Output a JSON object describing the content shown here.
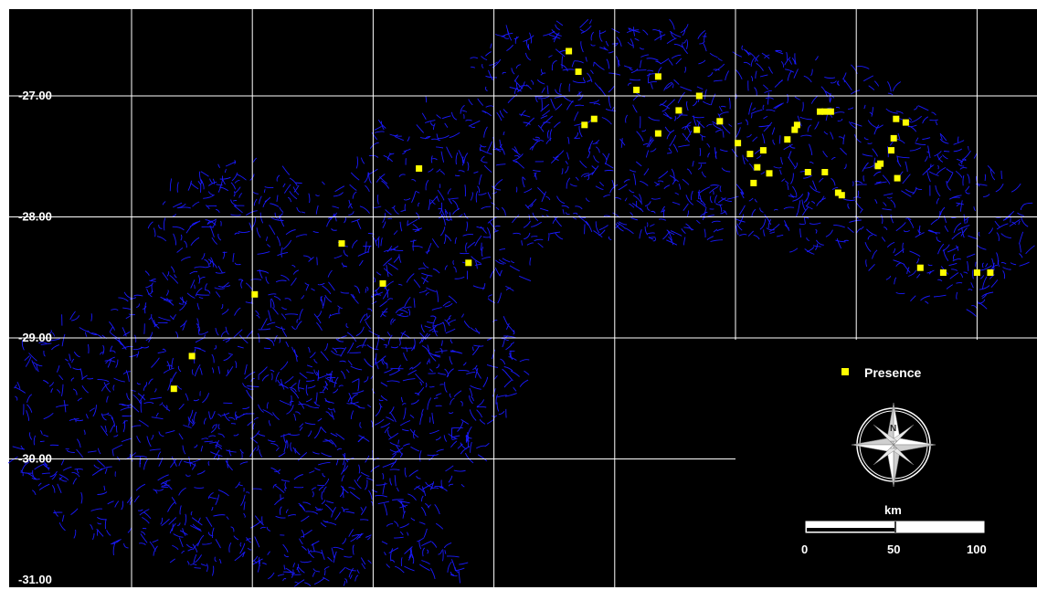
{
  "map": {
    "background_color": "#000000",
    "river_color": "#1a1aff",
    "grid_color": "#ffffff",
    "point_color": "#ffff00",
    "lon_ticks": [
      "-57.00",
      "-56.00",
      "-55.00",
      "-54.00",
      "-53.00",
      "-52.00",
      "-51.00",
      "-50.00"
    ],
    "lat_ticks": [
      "-27.00",
      "-28.00",
      "-29.00",
      "-30.00",
      "-31.00"
    ]
  },
  "legend": {
    "symbol": "yellow-square",
    "label": "Presence"
  },
  "north_arrow": {
    "icon": "compass-rose-icon",
    "letter": "N"
  },
  "scale_bar": {
    "unit": "km",
    "labels": [
      "0",
      "50",
      "100"
    ]
  },
  "presence_points": [
    [
      -53.38,
      -26.63
    ],
    [
      -53.3,
      -26.8
    ],
    [
      -52.64,
      -26.84
    ],
    [
      -52.82,
      -26.95
    ],
    [
      -52.3,
      -27.0
    ],
    [
      -52.47,
      -27.12
    ],
    [
      -53.17,
      -27.19
    ],
    [
      -53.25,
      -27.24
    ],
    [
      -52.13,
      -27.21
    ],
    [
      -52.32,
      -27.28
    ],
    [
      -52.64,
      -27.31
    ],
    [
      -51.49,
      -27.24
    ],
    [
      -51.51,
      -27.28
    ],
    [
      -51.57,
      -27.36
    ],
    [
      -51.98,
      -27.39
    ],
    [
      -51.88,
      -27.48
    ],
    [
      -51.77,
      -27.45
    ],
    [
      -51.3,
      -27.13
    ],
    [
      -51.21,
      -27.13
    ],
    [
      -51.26,
      -27.13
    ],
    [
      -50.67,
      -27.19
    ],
    [
      -50.59,
      -27.22
    ],
    [
      -50.69,
      -27.35
    ],
    [
      -50.71,
      -27.45
    ],
    [
      -50.8,
      -27.56
    ],
    [
      -50.82,
      -27.58
    ],
    [
      -50.66,
      -27.68
    ],
    [
      -51.82,
      -27.59
    ],
    [
      -51.72,
      -27.64
    ],
    [
      -51.4,
      -27.63
    ],
    [
      -51.26,
      -27.63
    ],
    [
      -51.85,
      -27.72
    ],
    [
      -51.15,
      -27.8
    ],
    [
      -51.12,
      -27.82
    ],
    [
      -54.62,
      -27.6
    ],
    [
      -55.26,
      -28.22
    ],
    [
      -54.21,
      -28.38
    ],
    [
      -54.92,
      -28.55
    ],
    [
      -55.98,
      -28.64
    ],
    [
      -50.47,
      -28.42
    ],
    [
      -50.28,
      -28.46
    ],
    [
      -50.0,
      -28.46
    ],
    [
      -49.89,
      -28.46
    ],
    [
      -56.5,
      -29.15
    ],
    [
      -56.65,
      -29.42
    ]
  ]
}
